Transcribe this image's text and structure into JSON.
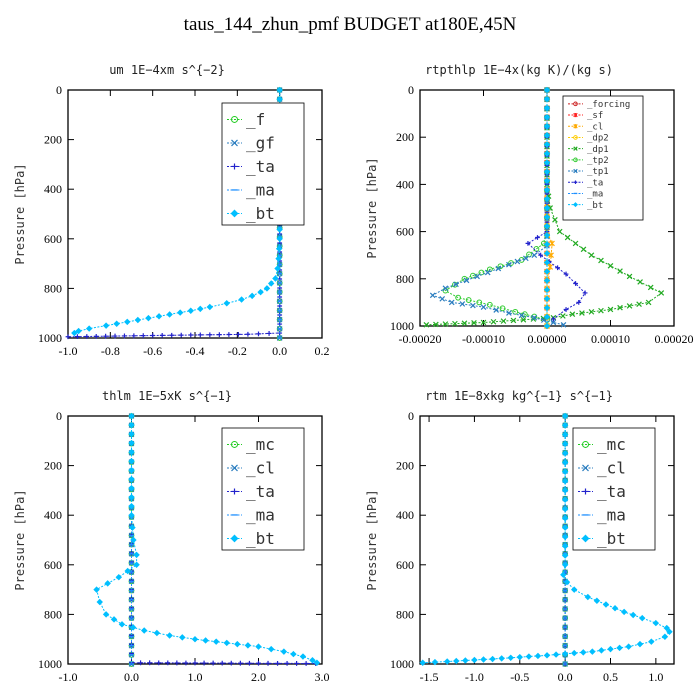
{
  "title": "taus_144_zhun_pmf  BUDGET at180E,45N",
  "chart_data": [
    {
      "type": "line",
      "title": "um  1E−4xm s^{−2}",
      "ylabel": "Pressure [hPa]",
      "xlim": [
        -1.0,
        0.2
      ],
      "ylim": [
        1000,
        0
      ],
      "xticks": [
        "-1.0",
        "-0.8",
        "-0.6",
        "-0.4",
        "-0.2",
        "0.0",
        "0.2"
      ],
      "xtick_values": [
        -1.0,
        -0.8,
        -0.6,
        -0.4,
        -0.2,
        0.0,
        0.2
      ],
      "yticks": [
        "0",
        "200",
        "400",
        "600",
        "800",
        "1000"
      ],
      "ytick_values": [
        0,
        200,
        400,
        600,
        800,
        1000
      ],
      "legend_position": "top-right",
      "legend_font": 16,
      "series": [
        {
          "name": "_f",
          "color": "#22cc22",
          "marker": "circle",
          "x": [
            0.0,
            0.0
          ],
          "y": [
            0,
            1000
          ]
        },
        {
          "name": "_gf",
          "color": "#2a7dbf",
          "marker": "x",
          "x": [
            0.0,
            0.0
          ],
          "y": [
            0,
            1000
          ]
        },
        {
          "name": "_ta",
          "color": "#2222cc",
          "marker": "plus",
          "x": [
            0.0,
            0.0,
            -0.15,
            -0.6,
            -1.0
          ],
          "y": [
            0,
            980,
            985,
            990,
            995
          ]
        },
        {
          "name": "_ma",
          "color": "#1e90ff",
          "marker": "dash",
          "x": [
            0.0,
            0.0
          ],
          "y": [
            0,
            1000
          ]
        },
        {
          "name": "_bt",
          "color": "#00bfff",
          "marker": "diamond",
          "x": [
            0.0,
            0.0,
            -0.005,
            -0.01,
            -0.02,
            -0.04,
            -0.06,
            -0.09,
            -0.13,
            -0.18,
            -0.25,
            -0.33,
            -0.42,
            -0.52,
            -0.62,
            -0.72,
            -0.82,
            -0.9,
            -0.95,
            -0.97
          ],
          "y": [
            0,
            600,
            680,
            720,
            760,
            780,
            800,
            815,
            830,
            845,
            860,
            875,
            890,
            905,
            920,
            935,
            950,
            962,
            972,
            980
          ]
        }
      ]
    },
    {
      "type": "line",
      "title": "rtpthlp  1E−4x(kg K)/(kg s)",
      "ylabel": "Pressure [hPa]",
      "xlim": [
        -0.0002,
        0.0002
      ],
      "ylim": [
        1000,
        0
      ],
      "xticks": [
        "-0.00020",
        "-0.00010",
        "0.00000",
        "0.00010",
        "0.00020"
      ],
      "xtick_values": [
        -0.0002,
        -0.0001,
        0.0,
        0.0001,
        0.0002
      ],
      "yticks": [
        "0",
        "200",
        "400",
        "600",
        "800",
        "1000"
      ],
      "ytick_values": [
        0,
        200,
        400,
        600,
        800,
        1000
      ],
      "legend_position": "top-right",
      "legend_font": 9,
      "series": [
        {
          "name": "_forcing",
          "color": "#cc2222",
          "marker": "circle",
          "x": [
            0.0,
            0.0
          ],
          "y": [
            0,
            1000
          ]
        },
        {
          "name": "_sf",
          "color": "#ff2222",
          "marker": "star",
          "x": [
            0.0,
            0.0
          ],
          "y": [
            0,
            1000
          ]
        },
        {
          "name": "_cl",
          "color": "#ffaa00",
          "marker": "star",
          "x": [
            0.0,
            0.0,
            8e-06,
            5e-06,
            0.0,
            0.0
          ],
          "y": [
            0,
            600,
            650,
            750,
            800,
            1000
          ]
        },
        {
          "name": "_dp2",
          "color": "#ffcc00",
          "marker": "circle",
          "x": [
            0.0,
            0.0
          ],
          "y": [
            0,
            1000
          ]
        },
        {
          "name": "_dp1",
          "color": "#22aa22",
          "marker": "x",
          "x": [
            0.0,
            0.0,
            5e-06,
            2e-05,
            7e-05,
            0.00013,
            0.00018,
            0.00016,
            0.0001,
            4e-05,
            1e-05,
            -0.0001,
            -0.00019
          ],
          "y": [
            0,
            400,
            500,
            600,
            700,
            790,
            860,
            900,
            930,
            950,
            965,
            985,
            995
          ]
        },
        {
          "name": "_tp2",
          "color": "#33cc33",
          "marker": "circle",
          "x": [
            0.0,
            0.0,
            -5e-06,
            -4e-05,
            -9e-05,
            -0.00013,
            -0.00016,
            -0.00014,
            -9e-05,
            -5e-05,
            -2e-05,
            0.0
          ],
          "y": [
            0,
            580,
            650,
            720,
            760,
            800,
            850,
            880,
            910,
            940,
            960,
            975
          ]
        },
        {
          "name": "_tp1",
          "color": "#2a7dbf",
          "marker": "x",
          "x": [
            0.0,
            0.0,
            -2e-05,
            -6e-05,
            -0.00011,
            -0.00016,
            -0.00018,
            -0.00015,
            -0.0001,
            -6e-05,
            -2e-05,
            1e-05,
            2.6e-05
          ],
          "y": [
            0,
            660,
            700,
            740,
            790,
            840,
            870,
            900,
            920,
            945,
            965,
            985,
            995
          ]
        },
        {
          "name": "_ta",
          "color": "#2222cc",
          "marker": "plus",
          "x": [
            0.0,
            0.0,
            -3e-05,
            -1e-05,
            3e-05,
            6e-05,
            5e-05,
            3e-05,
            1e-05
          ],
          "y": [
            0,
            600,
            650,
            700,
            780,
            860,
            900,
            930,
            970
          ]
        },
        {
          "name": "_ma",
          "color": "#1e90ff",
          "marker": "dash",
          "x": [
            0.0,
            0.0
          ],
          "y": [
            0,
            1000
          ]
        },
        {
          "name": "_bt",
          "color": "#00bfff",
          "marker": "diamond",
          "x": [
            0.0,
            0.0
          ],
          "y": [
            0,
            1000
          ]
        }
      ]
    },
    {
      "type": "line",
      "title": "thlm  1E−5xK s^{−1}",
      "ylabel": "Pressure [hPa]",
      "xlim": [
        -1.0,
        3.0
      ],
      "ylim": [
        1000,
        0
      ],
      "xticks": [
        "-1.0",
        "0.0",
        "1.0",
        "2.0",
        "3.0"
      ],
      "xtick_values": [
        -1.0,
        0.0,
        1.0,
        2.0,
        3.0
      ],
      "yticks": [
        "0",
        "200",
        "400",
        "600",
        "800",
        "1000"
      ],
      "ytick_values": [
        0,
        200,
        400,
        600,
        800,
        1000
      ],
      "legend_position": "top-right",
      "legend_font": 16,
      "series": [
        {
          "name": "_mc",
          "color": "#22cc22",
          "marker": "circle",
          "x": [
            0.0,
            0.0
          ],
          "y": [
            0,
            1000
          ]
        },
        {
          "name": "_cl",
          "color": "#2a7dbf",
          "marker": "x",
          "x": [
            0.0,
            0.0
          ],
          "y": [
            0,
            1000
          ]
        },
        {
          "name": "_ta",
          "color": "#2222cc",
          "marker": "plus",
          "x": [
            0.0,
            0.0,
            1.0,
            2.0,
            2.9
          ],
          "y": [
            0,
            995,
            996,
            997,
            998
          ]
        },
        {
          "name": "_ma",
          "color": "#1e90ff",
          "marker": "dash",
          "x": [
            0.0,
            0.0
          ],
          "y": [
            0,
            1000
          ]
        },
        {
          "name": "_bt",
          "color": "#00bfff",
          "marker": "diamond",
          "x": [
            0.0,
            0.0,
            0.03,
            0.08,
            0.08,
            -0.2,
            -0.55,
            -0.5,
            -0.4,
            -0.15,
            0.2,
            0.6,
            1.0,
            1.5,
            2.0,
            2.4,
            2.7,
            2.85,
            2.92
          ],
          "y": [
            0,
            400,
            500,
            560,
            600,
            650,
            700,
            750,
            800,
            840,
            865,
            885,
            900,
            915,
            930,
            950,
            970,
            985,
            995
          ]
        }
      ]
    },
    {
      "type": "line",
      "title": "rtm  1E−8xkg kg^{−1} s^{−1}",
      "ylabel": "Pressure [hPa]",
      "xlim": [
        -1.6,
        1.2
      ],
      "ylim": [
        1000,
        0
      ],
      "xticks": [
        "-1.5",
        "-1.0",
        "-0.5",
        "0.0",
        "0.5",
        "1.0"
      ],
      "xtick_values": [
        -1.5,
        -1.0,
        -0.5,
        0.0,
        0.5,
        1.0
      ],
      "yticks": [
        "0",
        "200",
        "400",
        "600",
        "800",
        "1000"
      ],
      "ytick_values": [
        0,
        200,
        400,
        600,
        800,
        1000
      ],
      "legend_position": "top-right",
      "legend_font": 16,
      "series": [
        {
          "name": "_mc",
          "color": "#22cc22",
          "marker": "circle",
          "x": [
            0.0,
            0.0
          ],
          "y": [
            0,
            1000
          ]
        },
        {
          "name": "_cl",
          "color": "#2a7dbf",
          "marker": "x",
          "x": [
            0.0,
            0.0
          ],
          "y": [
            0,
            1000
          ]
        },
        {
          "name": "_ta",
          "color": "#2222cc",
          "marker": "plus",
          "x": [
            0.0,
            0.0
          ],
          "y": [
            0,
            1000
          ]
        },
        {
          "name": "_ma",
          "color": "#1e90ff",
          "marker": "dash",
          "x": [
            0.0,
            0.0
          ],
          "y": [
            0,
            1000
          ]
        },
        {
          "name": "_bt",
          "color": "#00bfff",
          "marker": "diamond",
          "x": [
            0.0,
            0.0,
            -0.02,
            0.02,
            0.1,
            0.25,
            0.45,
            0.65,
            0.85,
            1.0,
            1.12,
            1.15,
            1.1,
            0.95,
            0.7,
            0.3,
            -0.2,
            -0.8,
            -1.3,
            -1.57
          ],
          "y": [
            0,
            600,
            640,
            670,
            700,
            730,
            760,
            790,
            815,
            835,
            855,
            870,
            890,
            910,
            930,
            950,
            965,
            980,
            990,
            995
          ]
        }
      ]
    }
  ]
}
